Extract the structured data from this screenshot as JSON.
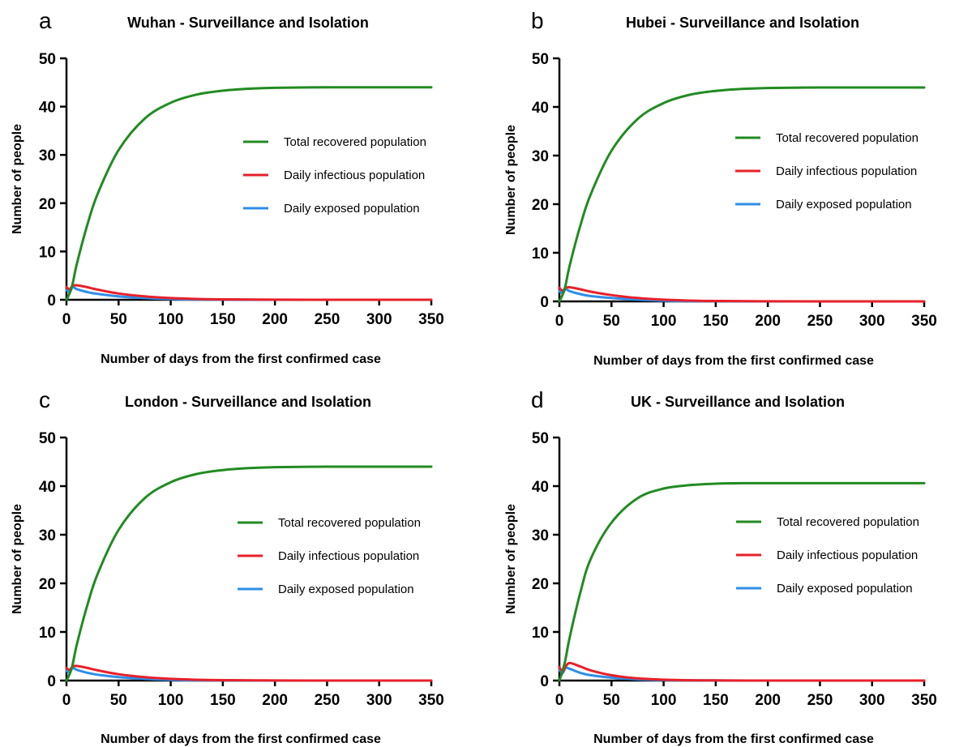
{
  "colors": {
    "recovered": "#228B22",
    "infectious": "#E8202A",
    "exposed": "#2E8DE8",
    "axis": "#000000"
  },
  "chart_data": [
    {
      "type": "line",
      "panel": "a",
      "title": "Wuhan - Surveillance and Isolation",
      "xlabel": "Number of days from the first confirmed case",
      "ylabel": "Number of people",
      "xlim": [
        0,
        350
      ],
      "ylim": [
        0,
        50
      ],
      "xticks": [
        0,
        50,
        100,
        150,
        200,
        250,
        300,
        350
      ],
      "yticks": [
        0,
        10,
        20,
        30,
        40,
        50
      ],
      "grid": false,
      "legend_position": "right",
      "series": [
        {
          "name": "Total recovered population",
          "color_key": "recovered",
          "x": [
            0,
            5,
            10,
            20,
            30,
            50,
            75,
            100,
            125,
            150,
            175,
            200,
            250,
            300,
            350
          ],
          "y": [
            0,
            2.5,
            7.5,
            15.5,
            22,
            31,
            37.5,
            40.8,
            42.5,
            43.3,
            43.7,
            43.9,
            44,
            44,
            44
          ]
        },
        {
          "name": "Daily infectious population",
          "color_key": "infectious",
          "x": [
            0,
            3,
            6,
            10,
            20,
            30,
            50,
            75,
            100,
            125,
            150,
            200,
            250,
            300,
            350
          ],
          "y": [
            2.6,
            2.2,
            2.9,
            3.0,
            2.6,
            2.1,
            1.3,
            0.7,
            0.35,
            0.17,
            0.08,
            0.02,
            0,
            0,
            0
          ]
        },
        {
          "name": "Daily exposed population",
          "color_key": "exposed",
          "x": [
            0,
            3,
            6,
            10,
            20,
            30,
            50,
            75,
            100,
            125,
            150,
            200,
            250,
            300,
            350
          ],
          "y": [
            2.0,
            1.7,
            2.6,
            2.2,
            1.6,
            1.2,
            0.7,
            0.35,
            0.15,
            0.07,
            0.03,
            0,
            0,
            0,
            0
          ]
        }
      ]
    },
    {
      "type": "line",
      "panel": "b",
      "title": "Hubei - Surveillance and Isolation",
      "xlabel": "Number of days from the first confirmed case",
      "ylabel": "Number of people",
      "xlim": [
        0,
        350
      ],
      "ylim": [
        0,
        50
      ],
      "xticks": [
        0,
        50,
        100,
        150,
        200,
        250,
        300,
        350
      ],
      "yticks": [
        0,
        10,
        20,
        30,
        40,
        50
      ],
      "grid": false,
      "legend_position": "right",
      "series": [
        {
          "name": "Total recovered population",
          "color_key": "recovered",
          "x": [
            0,
            5,
            10,
            20,
            30,
            50,
            75,
            100,
            125,
            150,
            175,
            200,
            250,
            300,
            350
          ],
          "y": [
            0,
            2.5,
            7.5,
            15.5,
            22,
            31,
            37.5,
            40.8,
            42.5,
            43.3,
            43.7,
            43.9,
            44,
            44,
            44
          ]
        },
        {
          "name": "Daily infectious population",
          "color_key": "infectious",
          "x": [
            0,
            3,
            6,
            10,
            20,
            30,
            50,
            75,
            100,
            125,
            150,
            200,
            250,
            300,
            350
          ],
          "y": [
            2.8,
            2.2,
            2.8,
            2.9,
            2.5,
            2.0,
            1.3,
            0.7,
            0.35,
            0.17,
            0.08,
            0.02,
            0,
            0,
            0
          ]
        },
        {
          "name": "Daily exposed population",
          "color_key": "exposed",
          "x": [
            0,
            3,
            6,
            10,
            20,
            30,
            50,
            75,
            100,
            125,
            150,
            200,
            250,
            300,
            350
          ],
          "y": [
            2.1,
            1.7,
            2.5,
            2.1,
            1.5,
            1.1,
            0.7,
            0.35,
            0.15,
            0.07,
            0.03,
            0,
            0,
            0,
            0
          ]
        }
      ]
    },
    {
      "type": "line",
      "panel": "c",
      "title": "London - Surveillance and Isolation",
      "xlabel": "Number of days from the first confirmed case",
      "ylabel": "Number of people",
      "xlim": [
        0,
        350
      ],
      "ylim": [
        0,
        50
      ],
      "xticks": [
        0,
        50,
        100,
        150,
        200,
        250,
        300,
        350
      ],
      "yticks": [
        0,
        10,
        20,
        30,
        40,
        50
      ],
      "grid": false,
      "legend_position": "right",
      "series": [
        {
          "name": "Total recovered population",
          "color_key": "recovered",
          "x": [
            0,
            5,
            10,
            20,
            30,
            50,
            75,
            100,
            125,
            150,
            175,
            200,
            250,
            300,
            350
          ],
          "y": [
            0,
            2.5,
            7.5,
            15.5,
            22,
            31,
            37.5,
            40.8,
            42.5,
            43.3,
            43.7,
            43.9,
            44,
            44,
            44
          ]
        },
        {
          "name": "Daily infectious population",
          "color_key": "infectious",
          "x": [
            0,
            3,
            6,
            10,
            20,
            30,
            50,
            75,
            100,
            125,
            150,
            200,
            250,
            300,
            350
          ],
          "y": [
            2.6,
            2.2,
            2.9,
            3.0,
            2.6,
            2.1,
            1.3,
            0.7,
            0.35,
            0.17,
            0.08,
            0.02,
            0,
            0,
            0
          ]
        },
        {
          "name": "Daily exposed population",
          "color_key": "exposed",
          "x": [
            0,
            3,
            6,
            10,
            20,
            30,
            50,
            75,
            100,
            125,
            150,
            200,
            250,
            300,
            350
          ],
          "y": [
            2.0,
            1.7,
            2.6,
            2.2,
            1.6,
            1.2,
            0.7,
            0.35,
            0.15,
            0.07,
            0.03,
            0,
            0,
            0,
            0
          ]
        }
      ]
    },
    {
      "type": "line",
      "panel": "d",
      "title": "UK - Surveillance and Isolation",
      "xlabel": "Number of days from the first confirmed case",
      "ylabel": "Number of people",
      "xlim": [
        0,
        350
      ],
      "ylim": [
        0,
        50
      ],
      "xticks": [
        0,
        50,
        100,
        150,
        200,
        250,
        300,
        350
      ],
      "yticks": [
        0,
        10,
        20,
        30,
        40,
        50
      ],
      "grid": false,
      "legend_position": "right",
      "series": [
        {
          "name": "Total recovered population",
          "color_key": "recovered",
          "x": [
            0,
            5,
            10,
            20,
            30,
            50,
            75,
            100,
            125,
            150,
            175,
            200,
            250,
            300,
            350
          ],
          "y": [
            0,
            3.5,
            9,
            18,
            25,
            32.5,
            37.5,
            39.5,
            40.2,
            40.5,
            40.6,
            40.6,
            40.6,
            40.6,
            40.6
          ]
        },
        {
          "name": "Daily infectious population",
          "color_key": "infectious",
          "x": [
            0,
            3,
            6,
            10,
            20,
            30,
            50,
            75,
            100,
            125,
            150,
            200,
            250,
            300,
            350
          ],
          "y": [
            2.8,
            1.8,
            2.9,
            3.6,
            2.9,
            2.1,
            1.1,
            0.45,
            0.18,
            0.07,
            0.03,
            0,
            0,
            0,
            0
          ]
        },
        {
          "name": "Daily exposed population",
          "color_key": "exposed",
          "x": [
            0,
            3,
            6,
            10,
            20,
            30,
            50,
            75,
            100,
            125,
            150,
            200,
            250,
            300,
            350
          ],
          "y": [
            2.2,
            1.5,
            2.6,
            2.4,
            1.6,
            1.1,
            0.6,
            0.25,
            0.1,
            0.04,
            0.02,
            0,
            0,
            0,
            0
          ]
        }
      ]
    }
  ]
}
